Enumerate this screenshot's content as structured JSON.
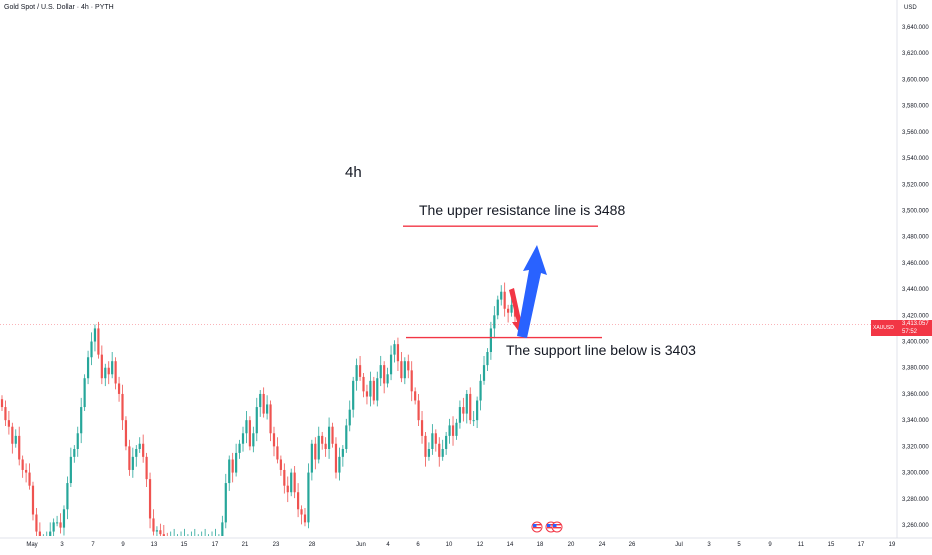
{
  "header": {
    "symbol_title": "Gold Spot / U.S. Dollar · 4h · PYTH",
    "currency": "USD"
  },
  "annotations": {
    "timeframe": "4h",
    "resistance_text": "The upper resistance line is 3488",
    "support_text": "The support line below is 3403"
  },
  "price_tag": {
    "symbol": "XAUUSD",
    "value": "3,413.057",
    "countdown": "57:52"
  },
  "colors": {
    "up": "#26a69a",
    "down": "#ef5350",
    "level_line": "#f23645",
    "arrow_up": "#2962ff",
    "arrow_down": "#f23645",
    "axis_text": "#131722"
  },
  "icons": [
    "us-flag-event-icon",
    "us-flag-event-icon"
  ],
  "chart_data": {
    "type": "candlestick",
    "ylim": [
      3250,
      3650
    ],
    "y_ticks": [
      3260,
      3280,
      3300,
      3320,
      3340,
      3360,
      3380,
      3400,
      3420,
      3440,
      3460,
      3480,
      3500,
      3520,
      3540,
      3560,
      3580,
      3600,
      3620,
      3640
    ],
    "y_tick_labels": [
      "3,260.000",
      "3,280.000",
      "3,300.000",
      "3,320.000",
      "3,340.000",
      "3,360.000",
      "3,380.000",
      "3,400.000",
      "3,420.000",
      "3,440.000",
      "3,460.000",
      "3,480.000",
      "3,500.000",
      "3,520.000",
      "3,540.000",
      "3,560.000",
      "3,580.000",
      "3,600.000",
      "3,620.000",
      "3,640.000"
    ],
    "x_ticks": [
      "May",
      "3",
      "7",
      "9",
      "13",
      "15",
      "17",
      "21",
      "23",
      "28",
      "Jun",
      "4",
      "6",
      "10",
      "12",
      "14",
      "18",
      "20",
      "24",
      "26",
      "Jul",
      "3",
      "5",
      "9",
      "11",
      "15",
      "17",
      "19"
    ],
    "x_tick_positions": [
      32,
      62,
      93,
      123,
      154,
      184,
      215,
      245,
      276,
      312,
      361,
      388,
      418,
      449,
      480,
      510,
      540,
      571,
      602,
      632,
      679,
      709,
      739,
      770,
      801,
      831,
      861,
      892
    ],
    "current_price": 3413.057,
    "levels": [
      {
        "value": 3488,
        "label": "The upper resistance line is 3488"
      },
      {
        "value": 3403,
        "label": "The support line below is 3403"
      }
    ],
    "candle_closes": [
      3350,
      3340,
      3335,
      3322,
      3328,
      3310,
      3302,
      3300,
      3290,
      3268,
      3255,
      3250,
      3250,
      3250,
      3255,
      3262,
      3262,
      3258,
      3272,
      3292,
      3312,
      3318,
      3330,
      3350,
      3372,
      3388,
      3400,
      3410,
      3390,
      3372,
      3380,
      3375,
      3385,
      3368,
      3360,
      3340,
      3320,
      3302,
      3312,
      3318,
      3322,
      3312,
      3295,
      3265,
      3255,
      3256,
      3253,
      3251,
      3250,
      3250,
      3250,
      3250,
      3250,
      3250,
      3250,
      3250,
      3250,
      3250,
      3250,
      3250,
      3250,
      3250,
      3250,
      3250,
      3262,
      3292,
      3310,
      3300,
      3315,
      3322,
      3330,
      3340,
      3320,
      3330,
      3350,
      3360,
      3345,
      3352,
      3330,
      3320,
      3310,
      3302,
      3290,
      3285,
      3300,
      3285,
      3272,
      3268,
      3262,
      3300,
      3322,
      3310,
      3328,
      3322,
      3318,
      3335,
      3322,
      3300,
      3312,
      3318,
      3336,
      3348,
      3370,
      3382,
      3373,
      3362,
      3358,
      3370,
      3355,
      3372,
      3382,
      3368,
      3375,
      3390,
      3398,
      3385,
      3372,
      3385,
      3378,
      3362,
      3355,
      3340,
      3328,
      3312,
      3318,
      3330,
      3322,
      3312,
      3318,
      3328,
      3336,
      3328,
      3338,
      3350,
      3345,
      3360,
      3340,
      3340,
      3355,
      3370,
      3382,
      3392,
      3410,
      3420,
      3432,
      3438,
      3425,
      3422,
      3428,
      3419
    ]
  }
}
